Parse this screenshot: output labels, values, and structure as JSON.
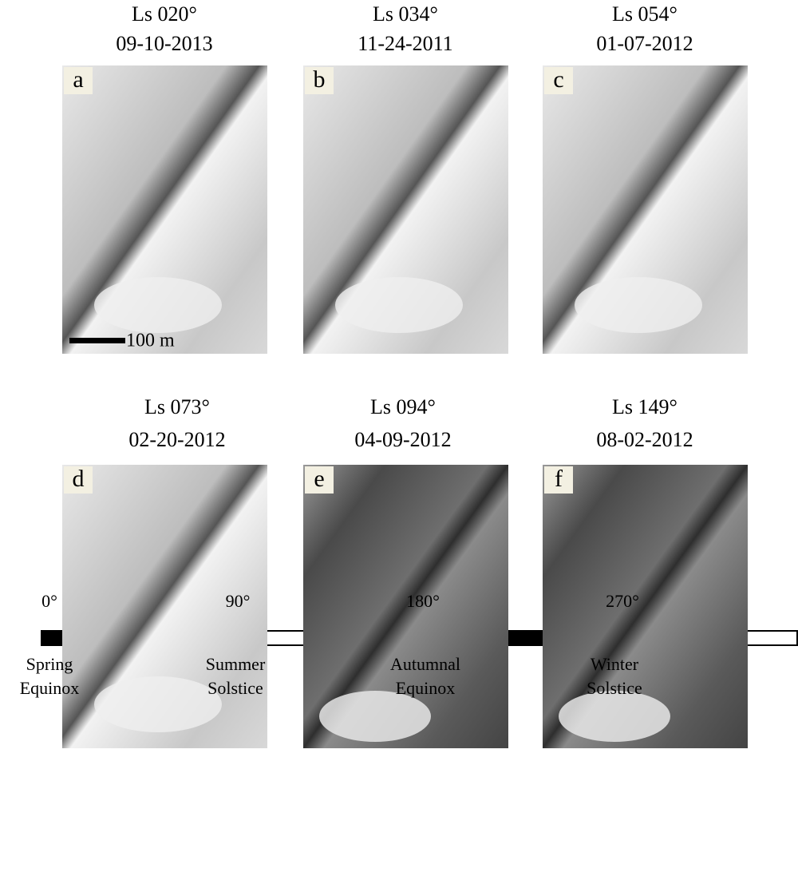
{
  "panels": [
    {
      "label": "a",
      "ls": "Ls 020°",
      "date": "09-10-2013"
    },
    {
      "label": "b",
      "ls": "Ls 034°",
      "date": "11-24-2011"
    },
    {
      "label": "c",
      "ls": "Ls 054°",
      "date": "01-07-2012"
    },
    {
      "label": "d",
      "ls": "Ls 073°",
      "date": "02-20-2012"
    },
    {
      "label": "e",
      "ls": "Ls 094°",
      "date": "04-09-2012"
    },
    {
      "label": "f",
      "ls": "Ls 149°",
      "date": "08-02-2012"
    }
  ],
  "scale_bar": "100 m",
  "timeline": {
    "ticks": [
      "0°",
      "90°",
      "180°",
      "270°"
    ],
    "seasons": [
      {
        "line1": "Spring",
        "line2": "Equinox"
      },
      {
        "line1": "Summer",
        "line2": "Solstice"
      },
      {
        "line1": "Autumnal",
        "line2": "Equinox"
      },
      {
        "line1": "Winter",
        "line2": "Solstice"
      }
    ]
  }
}
